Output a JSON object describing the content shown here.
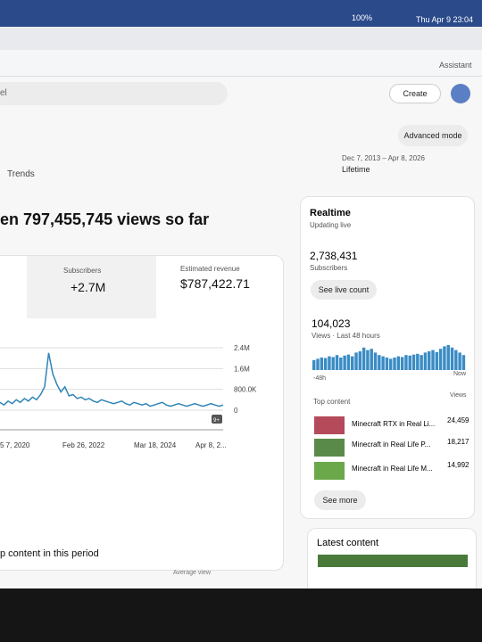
{
  "menu_bar": {
    "battery": "100%",
    "clock": "Thu Apr 9  23:04"
  },
  "toolbar": {
    "assistant": "Assistant"
  },
  "header": {
    "search": "el",
    "create": "Create"
  },
  "advanced_mode": "Advanced mode",
  "tab": "Trends",
  "date_range": {
    "range": "Dec 7, 2013 – Apr 8, 2026",
    "label": "Lifetime"
  },
  "headline": "en 797,455,745 views so far",
  "metrics": [
    {
      "label": "Subscribers",
      "value": "+2.7M"
    },
    {
      "label": "Estimated revenue",
      "value": "$787,422.71"
    }
  ],
  "chart_data": {
    "type": "line",
    "color": "#2f84b8",
    "x_labels": [
      "5 7, 2020",
      "Feb 26, 2022",
      "Mar 18, 2024",
      "Apr 8, 2..."
    ],
    "values": [
      300000,
      200000,
      350000,
      250000,
      400000,
      300000,
      450000,
      350000,
      500000,
      400000,
      600000,
      900000,
      2200000,
      1400000,
      1000000,
      700000,
      900000,
      550000,
      600000,
      450000,
      500000,
      400000,
      450000,
      350000,
      300000,
      400000,
      350000,
      300000,
      250000,
      300000,
      350000,
      250000,
      200000,
      300000,
      250000,
      200000,
      250000,
      150000,
      200000,
      250000,
      300000,
      200000,
      150000,
      200000,
      250000,
      200000,
      150000,
      200000,
      250000,
      200000,
      150000,
      200000,
      250000,
      200000,
      150000,
      200000
    ],
    "ylim": [
      0,
      2400000
    ],
    "yticks": [
      0,
      {
        "value": 800000,
        "label": "800.0K"
      },
      {
        "value": 1600000,
        "label": "1.6M"
      },
      {
        "value": 2400000,
        "label": "2.4M"
      }
    ],
    "badge": "9+"
  },
  "realtime": {
    "title": "Realtime",
    "status": "Updating live",
    "subscribers": "2,738,431",
    "subscribers_label": "Subscribers",
    "live_button": "See live count",
    "views": "104,023",
    "views_label": "Views · Last 48 hours",
    "start": "-48h",
    "end": "Now",
    "color": "#3a8cc4",
    "bars": [
      40,
      45,
      50,
      48,
      55,
      52,
      60,
      50,
      58,
      62,
      55,
      70,
      75,
      90,
      80,
      85,
      70,
      60,
      55,
      50,
      45,
      50,
      55,
      52,
      60,
      58,
      62,
      65,
      60,
      70,
      75,
      80,
      72,
      85,
      95,
      100,
      90,
      80,
      70,
      60
    ],
    "top_content": "Top content",
    "views_header": "Views",
    "rows": [
      {
        "title": "Minecraft RTX in Real Li...",
        "views": "24,459"
      },
      {
        "title": "Minecraft in Real Life P...",
        "views": "18,217"
      },
      {
        "title": "Minecraft in Real Life M...",
        "views": "14,992"
      }
    ],
    "see_more": "See more"
  },
  "section_title": "p content in this period",
  "column_header": "Average view",
  "latest_content": "Latest content"
}
